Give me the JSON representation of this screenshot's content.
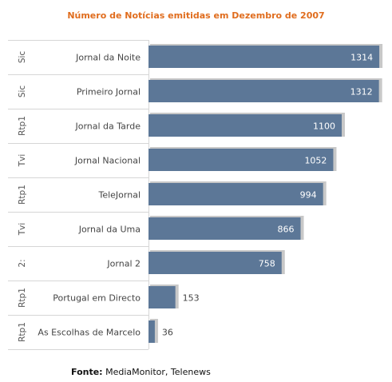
{
  "chart_data": {
    "type": "bar",
    "orientation": "horizontal",
    "title": "Número de Notícias emitidas em Dezembro de 2007",
    "xlim": [
      0,
      1350
    ],
    "grid": false,
    "rows": [
      {
        "group": "Sic",
        "label": "Jornal da Noite",
        "value": 1314,
        "display": "1314"
      },
      {
        "group": "Sic",
        "label": "Primeiro Jornal",
        "value": 1312,
        "display": "1312"
      },
      {
        "group": "Rtp1",
        "label": "Jornal da Tarde",
        "value": 1100,
        "display": "1100"
      },
      {
        "group": "Tvi",
        "label": "Jornal Nacional",
        "value": 1052,
        "display": "1052"
      },
      {
        "group": "Rtp1",
        "label": "TeleJornal",
        "value": 994,
        "display": "994"
      },
      {
        "group": "Tvi",
        "label": "Jornal da Uma",
        "value": 866,
        "display": "866"
      },
      {
        "group": "2:",
        "label": "Jornal 2",
        "value": 758,
        "display": "758"
      },
      {
        "group": "Rtp1",
        "label": "Portugal em Directo",
        "value": 153,
        "display": "153"
      },
      {
        "group": "Rtp1",
        "label": "As Escolhas de Marcelo",
        "value": 36,
        "display": "36"
      }
    ],
    "colors": {
      "bar": "#5c7797",
      "shadow": "#c8c8c8",
      "title": "#e06d1e",
      "divider": "#d6d6d6"
    }
  },
  "source": {
    "label": "Fonte:",
    "text": "MediaMonitor, Telenews"
  }
}
